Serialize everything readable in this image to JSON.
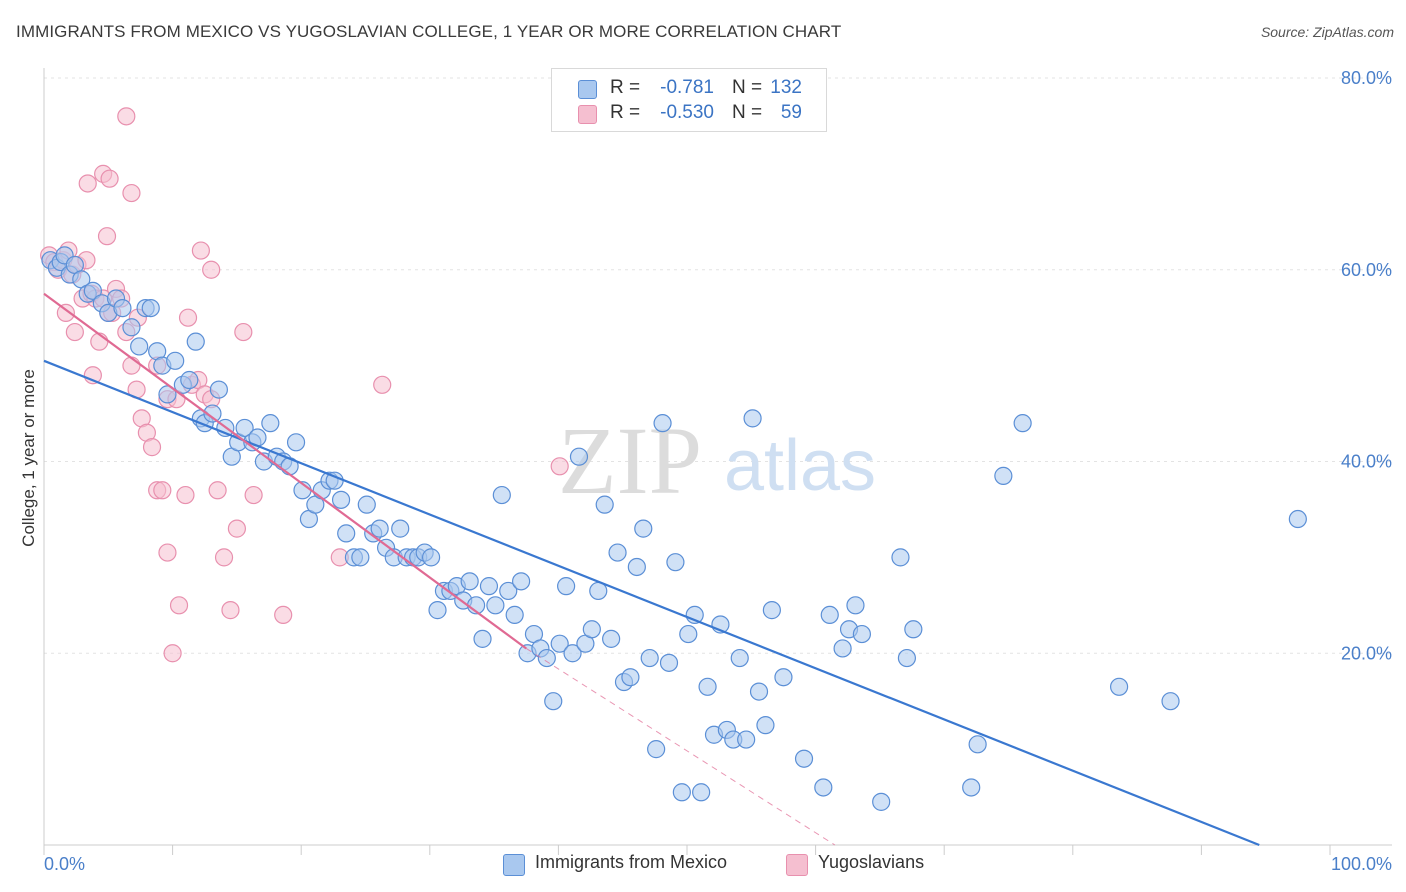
{
  "header": {
    "title": "IMMIGRANTS FROM MEXICO VS YUGOSLAVIAN COLLEGE, 1 YEAR OR MORE CORRELATION CHART",
    "source": "Source: ZipAtlas.com"
  },
  "watermark": {
    "zip": "ZIP",
    "atlas": "atlas"
  },
  "colors": {
    "blue_fill": "#a9c8ef",
    "blue_stroke": "#5b8fd6",
    "blue_line": "#3a78d0",
    "pink_fill": "#f5bfd0",
    "pink_stroke": "#e890ae",
    "pink_line": "#e06a93",
    "tick_label": "#4a7fc9",
    "grid": "#e3e3e3"
  },
  "stats_legend": [
    {
      "r_label": "R =",
      "r_value": "-0.781",
      "n_label": "N =",
      "n_value": "132"
    },
    {
      "r_label": "R =",
      "r_value": "-0.530",
      "n_label": "N =",
      "n_value": "59"
    }
  ],
  "bottom_legend": {
    "series1": "Immigrants from Mexico",
    "series2": "Yugoslavians"
  },
  "chart_data": {
    "type": "scatter",
    "title": "IMMIGRANTS FROM MEXICO VS YUGOSLAVIAN COLLEGE, 1 YEAR OR MORE CORRELATION CHART",
    "xlabel": "",
    "ylabel": "College, 1 year or more",
    "xlim": [
      0,
      100
    ],
    "ylim": [
      0,
      80
    ],
    "x_tick_labels": [
      "0.0%",
      "100.0%"
    ],
    "y_tick_labels": [
      "20.0%",
      "40.0%",
      "60.0%",
      "80.0%"
    ],
    "y_ticks": [
      20,
      40,
      60,
      80
    ],
    "grid": true,
    "legend": "bottom",
    "series": [
      {
        "name": "Immigrants from Mexico",
        "trendline": {
          "x": [
            0,
            94.5
          ],
          "y": [
            50.5,
            0
          ]
        },
        "points": [
          [
            0.5,
            61.0
          ],
          [
            1.0,
            60.2
          ],
          [
            1.3,
            60.8
          ],
          [
            1.6,
            61.5
          ],
          [
            2.0,
            59.5
          ],
          [
            2.4,
            60.5
          ],
          [
            2.9,
            59.0
          ],
          [
            3.4,
            57.5
          ],
          [
            3.8,
            57.8
          ],
          [
            4.5,
            56.5
          ],
          [
            5.0,
            55.5
          ],
          [
            5.6,
            57.0
          ],
          [
            6.1,
            56.0
          ],
          [
            6.8,
            54.0
          ],
          [
            7.4,
            52.0
          ],
          [
            7.9,
            56.0
          ],
          [
            8.3,
            56.0
          ],
          [
            8.8,
            51.5
          ],
          [
            9.2,
            50.0
          ],
          [
            9.6,
            47.0
          ],
          [
            10.2,
            50.5
          ],
          [
            10.8,
            48.0
          ],
          [
            11.3,
            48.5
          ],
          [
            11.8,
            52.5
          ],
          [
            12.2,
            44.5
          ],
          [
            12.5,
            44.0
          ],
          [
            13.1,
            45.0
          ],
          [
            13.6,
            47.5
          ],
          [
            14.1,
            43.5
          ],
          [
            14.6,
            40.5
          ],
          [
            15.1,
            42.0
          ],
          [
            15.6,
            43.5
          ],
          [
            16.2,
            42.0
          ],
          [
            16.6,
            42.5
          ],
          [
            17.1,
            40.0
          ],
          [
            17.6,
            44.0
          ],
          [
            18.1,
            40.5
          ],
          [
            18.6,
            40.0
          ],
          [
            19.1,
            39.5
          ],
          [
            19.6,
            42.0
          ],
          [
            20.1,
            37.0
          ],
          [
            20.6,
            34.0
          ],
          [
            21.1,
            35.5
          ],
          [
            21.6,
            37.0
          ],
          [
            22.2,
            38.0
          ],
          [
            22.6,
            38.0
          ],
          [
            23.1,
            36.0
          ],
          [
            23.5,
            32.5
          ],
          [
            24.1,
            30.0
          ],
          [
            24.6,
            30.0
          ],
          [
            25.1,
            35.5
          ],
          [
            25.6,
            32.5
          ],
          [
            26.1,
            33.0
          ],
          [
            26.6,
            31.0
          ],
          [
            27.2,
            30.0
          ],
          [
            27.7,
            33.0
          ],
          [
            28.2,
            30.0
          ],
          [
            28.7,
            30.0
          ],
          [
            29.1,
            30.0
          ],
          [
            29.6,
            30.5
          ],
          [
            30.1,
            30.0
          ],
          [
            30.6,
            24.5
          ],
          [
            31.1,
            26.5
          ],
          [
            31.6,
            26.5
          ],
          [
            32.1,
            27.0
          ],
          [
            32.6,
            25.5
          ],
          [
            33.1,
            27.5
          ],
          [
            33.6,
            25.0
          ],
          [
            34.1,
            21.5
          ],
          [
            34.6,
            27.0
          ],
          [
            35.1,
            25.0
          ],
          [
            35.6,
            36.5
          ],
          [
            36.1,
            26.5
          ],
          [
            36.6,
            24.0
          ],
          [
            37.1,
            27.5
          ],
          [
            37.6,
            20.0
          ],
          [
            38.1,
            22.0
          ],
          [
            38.6,
            20.5
          ],
          [
            39.1,
            19.5
          ],
          [
            39.6,
            15.0
          ],
          [
            40.1,
            21.0
          ],
          [
            40.6,
            27.0
          ],
          [
            41.1,
            20.0
          ],
          [
            41.6,
            40.5
          ],
          [
            42.1,
            21.0
          ],
          [
            42.6,
            22.5
          ],
          [
            43.1,
            26.5
          ],
          [
            43.6,
            35.5
          ],
          [
            44.1,
            21.5
          ],
          [
            44.6,
            30.5
          ],
          [
            45.1,
            17.0
          ],
          [
            45.6,
            17.5
          ],
          [
            46.1,
            29.0
          ],
          [
            46.6,
            33.0
          ],
          [
            47.1,
            19.5
          ],
          [
            47.6,
            10.0
          ],
          [
            48.1,
            44.0
          ],
          [
            48.6,
            19.0
          ],
          [
            49.1,
            29.5
          ],
          [
            49.6,
            5.5
          ],
          [
            50.1,
            22.0
          ],
          [
            50.6,
            24.0
          ],
          [
            51.1,
            5.5
          ],
          [
            51.6,
            16.5
          ],
          [
            52.1,
            11.5
          ],
          [
            52.6,
            23.0
          ],
          [
            53.1,
            12.0
          ],
          [
            53.6,
            11.0
          ],
          [
            54.1,
            19.5
          ],
          [
            54.6,
            11.0
          ],
          [
            55.1,
            44.5
          ],
          [
            55.6,
            16.0
          ],
          [
            56.1,
            12.5
          ],
          [
            56.6,
            24.5
          ],
          [
            57.5,
            17.5
          ],
          [
            59.1,
            9.0
          ],
          [
            60.6,
            6.0
          ],
          [
            61.1,
            24.0
          ],
          [
            62.1,
            20.5
          ],
          [
            62.6,
            22.5
          ],
          [
            63.1,
            25.0
          ],
          [
            63.6,
            22.0
          ],
          [
            65.1,
            4.5
          ],
          [
            66.6,
            30.0
          ],
          [
            67.1,
            19.5
          ],
          [
            67.6,
            22.5
          ],
          [
            72.1,
            6.0
          ],
          [
            72.6,
            10.5
          ],
          [
            74.6,
            38.5
          ],
          [
            76.1,
            44.0
          ],
          [
            83.6,
            16.5
          ],
          [
            87.6,
            15.0
          ],
          [
            97.5,
            34.0
          ]
        ]
      },
      {
        "name": "Yugoslavians",
        "trendline": {
          "x": [
            0,
            37.5
          ],
          "y": [
            57.5,
            20.5
          ],
          "dashed_x": [
            37.5,
            61.5
          ],
          "dashed_y": [
            20.5,
            0
          ]
        },
        "points": [
          [
            0.4,
            61.5
          ],
          [
            0.8,
            60.8
          ],
          [
            1.1,
            60.0
          ],
          [
            1.5,
            61.0
          ],
          [
            1.9,
            62.0
          ],
          [
            2.2,
            59.5
          ],
          [
            2.6,
            60.5
          ],
          [
            3.0,
            57.0
          ],
          [
            3.3,
            61.0
          ],
          [
            3.7,
            57.5
          ],
          [
            4.0,
            57.0
          ],
          [
            4.3,
            52.5
          ],
          [
            4.6,
            57.0
          ],
          [
            5.0,
            55.5
          ],
          [
            5.3,
            55.5
          ],
          [
            5.6,
            58.0
          ],
          [
            6.0,
            57.0
          ],
          [
            6.4,
            53.5
          ],
          [
            6.8,
            50.0
          ],
          [
            7.2,
            47.5
          ],
          [
            7.6,
            44.5
          ],
          [
            8.0,
            43.0
          ],
          [
            8.4,
            41.5
          ],
          [
            8.8,
            37.0
          ],
          [
            9.2,
            37.0
          ],
          [
            9.6,
            30.5
          ],
          [
            10.0,
            20.0
          ],
          [
            10.5,
            25.0
          ],
          [
            11.0,
            36.5
          ],
          [
            11.5,
            48.0
          ],
          [
            12.0,
            48.5
          ],
          [
            12.5,
            47.0
          ],
          [
            13.0,
            46.5
          ],
          [
            13.5,
            37.0
          ],
          [
            14.0,
            30.0
          ],
          [
            14.5,
            24.5
          ],
          [
            15.0,
            33.0
          ],
          [
            15.5,
            53.5
          ],
          [
            2.4,
            53.5
          ],
          [
            3.8,
            49.0
          ],
          [
            1.7,
            55.5
          ],
          [
            4.9,
            63.5
          ],
          [
            3.4,
            69.0
          ],
          [
            4.6,
            70.0
          ],
          [
            5.1,
            69.5
          ],
          [
            6.4,
            76.0
          ],
          [
            6.8,
            68.0
          ],
          [
            8.8,
            50.0
          ],
          [
            9.6,
            46.5
          ],
          [
            10.3,
            46.5
          ],
          [
            11.2,
            55.0
          ],
          [
            12.2,
            62.0
          ],
          [
            13.0,
            60.0
          ],
          [
            16.3,
            36.5
          ],
          [
            18.6,
            24.0
          ],
          [
            23.0,
            30.0
          ],
          [
            26.3,
            48.0
          ],
          [
            40.1,
            39.5
          ],
          [
            7.3,
            55.0
          ]
        ]
      }
    ]
  }
}
